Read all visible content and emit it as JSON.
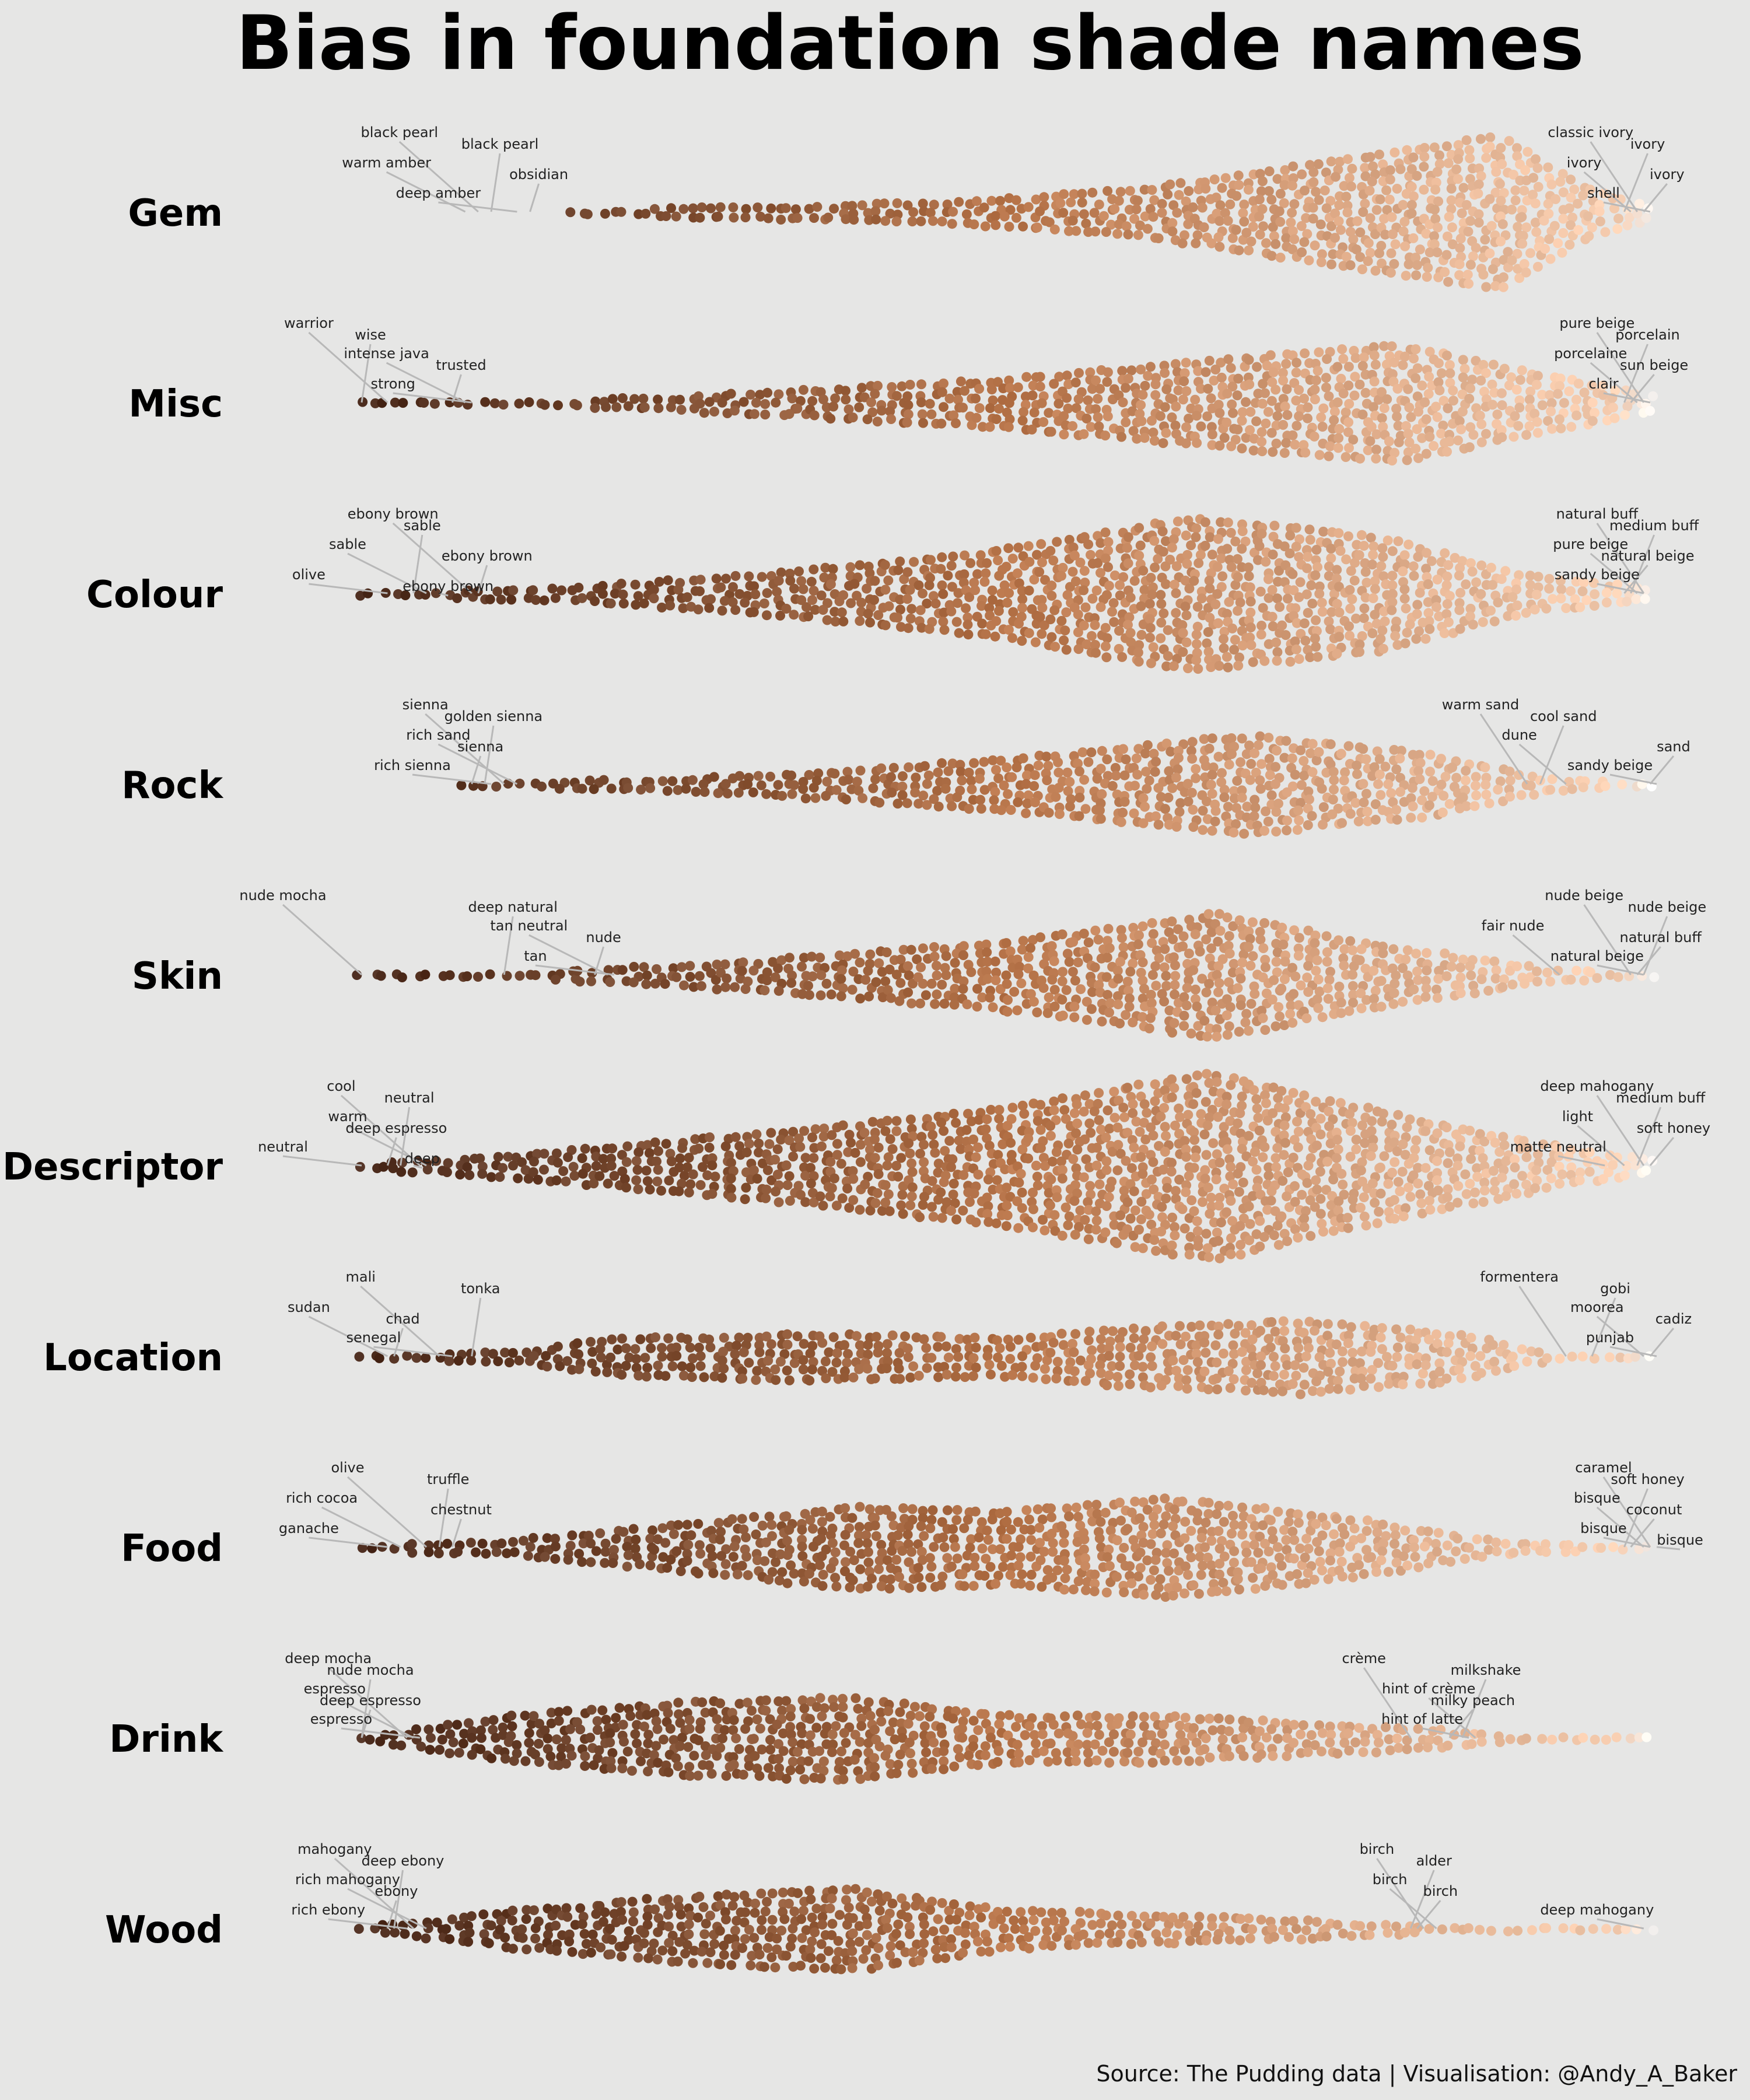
{
  "chart_data": {
    "type": "scatter",
    "subtype": "beeswarm",
    "title": "Bias in foundation shade names",
    "source": "Source: The Pudding data | Visualisation: @Andy_A_Baker",
    "x_meaning": "shade lightness (dark to light)",
    "xlim": [
      0,
      1
    ],
    "grid": false,
    "legend": "none",
    "color_dark": "#4a2a1c",
    "color_mid": "#b8754a",
    "color_light": "#f6cdb0",
    "color_lightest": "#ffffff",
    "categories": [
      {
        "name": "Gem",
        "shape": [
          [
            0.16,
            1.0
          ],
          [
            0.28,
            2.0
          ],
          [
            0.45,
            3.0
          ],
          [
            0.6,
            6.0
          ],
          [
            0.74,
            12.0
          ],
          [
            0.88,
            18.0
          ],
          [
            0.94,
            7.0
          ],
          [
            1.0,
            1.5
          ]
        ],
        "annotations": [
          {
            "text": "black pearl",
            "x": 0.09
          },
          {
            "text": "black pearl",
            "x": 0.1
          },
          {
            "text": "warm amber",
            "x": 0.08
          },
          {
            "text": "obsidian",
            "x": 0.13
          },
          {
            "text": "deep amber",
            "x": 0.12
          },
          {
            "text": "classic ivory",
            "x": 0.985
          },
          {
            "text": "ivory",
            "x": 0.975
          },
          {
            "text": "ivory",
            "x": 0.98
          },
          {
            "text": "ivory",
            "x": 0.99
          },
          {
            "text": "shell",
            "x": 0.995
          }
        ]
      },
      {
        "name": "Misc",
        "shape": [
          [
            0.0,
            1.0
          ],
          [
            0.15,
            1.2
          ],
          [
            0.3,
            3.0
          ],
          [
            0.48,
            6.0
          ],
          [
            0.64,
            10.0
          ],
          [
            0.8,
            14.0
          ],
          [
            0.9,
            8.0
          ],
          [
            1.0,
            2.5
          ]
        ],
        "annotations": [
          {
            "text": "warrior",
            "x": 0.02
          },
          {
            "text": "wise",
            "x": 0.0
          },
          {
            "text": "intense java",
            "x": 0.08
          },
          {
            "text": "trusted",
            "x": 0.07
          },
          {
            "text": "strong",
            "x": 0.085
          },
          {
            "text": "pure beige",
            "x": 0.99
          },
          {
            "text": "porcelain",
            "x": 0.975
          },
          {
            "text": "porcelaine",
            "x": 0.985
          },
          {
            "text": "sun beige",
            "x": 0.98
          },
          {
            "text": "clair",
            "x": 0.995
          }
        ]
      },
      {
        "name": "Colour",
        "shape": [
          [
            0.0,
            1.0
          ],
          [
            0.15,
            2.0
          ],
          [
            0.3,
            5.0
          ],
          [
            0.48,
            10.0
          ],
          [
            0.64,
            18.0
          ],
          [
            0.78,
            14.0
          ],
          [
            0.9,
            5.0
          ],
          [
            1.0,
            2.0
          ]
        ],
        "annotations": [
          {
            "text": "ebony brown",
            "x": 0.085
          },
          {
            "text": "sable",
            "x": 0.04
          },
          {
            "text": "sable",
            "x": 0.05
          },
          {
            "text": "ebony brown",
            "x": 0.09
          },
          {
            "text": "olive",
            "x": 0.02
          },
          {
            "text": "ebony brown",
            "x": 0.06
          },
          {
            "text": "natural buff",
            "x": 0.99
          },
          {
            "text": "medium buff",
            "x": 0.98
          },
          {
            "text": "pure beige",
            "x": 0.985
          },
          {
            "text": "natural beige",
            "x": 0.975
          },
          {
            "text": "sandy beige",
            "x": 0.99
          }
        ]
      },
      {
        "name": "Rock",
        "shape": [
          [
            0.08,
            1.0
          ],
          [
            0.22,
            2.0
          ],
          [
            0.38,
            4.0
          ],
          [
            0.55,
            8.0
          ],
          [
            0.68,
            12.0
          ],
          [
            0.82,
            8.0
          ],
          [
            0.92,
            2.0
          ],
          [
            1.0,
            1.0
          ]
        ],
        "annotations": [
          {
            "text": "sienna",
            "x": 0.11
          },
          {
            "text": "golden sienna",
            "x": 0.095
          },
          {
            "text": "rich sand",
            "x": 0.12
          },
          {
            "text": "sienna",
            "x": 0.085
          },
          {
            "text": "rich sienna",
            "x": 0.1
          },
          {
            "text": "warm sand",
            "x": 0.9
          },
          {
            "text": "cool sand",
            "x": 0.91
          },
          {
            "text": "dune",
            "x": 0.93
          },
          {
            "text": "sand",
            "x": 0.995
          },
          {
            "text": "sandy beige",
            "x": 1.0
          }
        ]
      },
      {
        "name": "Skin",
        "shape": [
          [
            0.0,
            1.0
          ],
          [
            0.15,
            1.5
          ],
          [
            0.3,
            4.0
          ],
          [
            0.48,
            8.0
          ],
          [
            0.6,
            12.0
          ],
          [
            0.66,
            15.0
          ],
          [
            0.8,
            7.0
          ],
          [
            0.92,
            2.0
          ],
          [
            1.0,
            1.0
          ]
        ],
        "annotations": [
          {
            "text": "nude mocha",
            "x": 0.0
          },
          {
            "text": "deep natural",
            "x": 0.11
          },
          {
            "text": "tan neutral",
            "x": 0.19
          },
          {
            "text": "nude",
            "x": 0.18
          },
          {
            "text": "tan",
            "x": 0.195
          },
          {
            "text": "nude beige",
            "x": 0.98
          },
          {
            "text": "nude beige",
            "x": 0.99
          },
          {
            "text": "fair nude",
            "x": 0.925
          },
          {
            "text": "natural buff",
            "x": 0.985
          },
          {
            "text": "natural beige",
            "x": 0.99
          }
        ]
      },
      {
        "name": "Descriptor",
        "shape": [
          [
            0.0,
            1.0
          ],
          [
            0.1,
            3.0
          ],
          [
            0.3,
            8.0
          ],
          [
            0.5,
            14.0
          ],
          [
            0.66,
            22.0
          ],
          [
            0.74,
            16.0
          ],
          [
            0.84,
            10.0
          ],
          [
            0.95,
            4.0
          ],
          [
            1.0,
            2.0
          ]
        ],
        "annotations": [
          {
            "text": "cool",
            "x": 0.045
          },
          {
            "text": "neutral",
            "x": 0.03
          },
          {
            "text": "warm",
            "x": 0.05
          },
          {
            "text": "deep espresso",
            "x": 0.02
          },
          {
            "text": "neutral",
            "x": 0.0
          },
          {
            "text": "deep",
            "x": 0.04
          },
          {
            "text": "deep mahogany",
            "x": 0.99
          },
          {
            "text": "medium buff",
            "x": 0.985
          },
          {
            "text": "light",
            "x": 0.975
          },
          {
            "text": "soft honey",
            "x": 0.995
          },
          {
            "text": "matte neutral",
            "x": 0.96
          }
        ]
      },
      {
        "name": "Location",
        "shape": [
          [
            0.0,
            1.0
          ],
          [
            0.12,
            2.0
          ],
          [
            0.2,
            5.0
          ],
          [
            0.35,
            6.0
          ],
          [
            0.5,
            5.0
          ],
          [
            0.58,
            7.0
          ],
          [
            0.72,
            9.0
          ],
          [
            0.85,
            6.0
          ],
          [
            0.92,
            1.0
          ],
          [
            1.0,
            1.0
          ]
        ],
        "annotations": [
          {
            "text": "mali",
            "x": 0.06
          },
          {
            "text": "tonka",
            "x": 0.085
          },
          {
            "text": "sudan",
            "x": 0.02
          },
          {
            "text": "chad",
            "x": 0.025
          },
          {
            "text": "senegal",
            "x": 0.07
          },
          {
            "text": "formentera",
            "x": 0.93
          },
          {
            "text": "gobi",
            "x": 0.95
          },
          {
            "text": "moorea",
            "x": 0.99
          },
          {
            "text": "cadiz",
            "x": 0.995
          },
          {
            "text": "punjab",
            "x": 1.0
          }
        ]
      },
      {
        "name": "Food",
        "shape": [
          [
            0.0,
            1.0
          ],
          [
            0.12,
            2.5
          ],
          [
            0.25,
            6.0
          ],
          [
            0.38,
            10.0
          ],
          [
            0.5,
            9.0
          ],
          [
            0.62,
            12.0
          ],
          [
            0.75,
            8.0
          ],
          [
            0.88,
            2.0
          ],
          [
            1.0,
            1.0
          ]
        ],
        "annotations": [
          {
            "text": "olive",
            "x": 0.05
          },
          {
            "text": "truffle",
            "x": 0.06
          },
          {
            "text": "rich cocoa",
            "x": 0.03
          },
          {
            "text": "chestnut",
            "x": 0.07
          },
          {
            "text": "ganache",
            "x": 0.02
          },
          {
            "text": "caramel",
            "x": 0.995
          },
          {
            "text": "soft honey",
            "x": 0.975
          },
          {
            "text": "bisque",
            "x": 0.99
          },
          {
            "text": "coconut",
            "x": 0.98
          },
          {
            "text": "bisque",
            "x": 0.995
          },
          {
            "text": "bisque",
            "x": 1.0
          }
        ]
      },
      {
        "name": "Drink",
        "shape": [
          [
            0.0,
            1.0
          ],
          [
            0.12,
            6.0
          ],
          [
            0.25,
            9.0
          ],
          [
            0.38,
            10.0
          ],
          [
            0.5,
            6.0
          ],
          [
            0.62,
            6.0
          ],
          [
            0.75,
            4.0
          ],
          [
            0.82,
            3.0
          ],
          [
            0.9,
            1.0
          ],
          [
            1.0,
            1.0
          ]
        ],
        "annotations": [
          {
            "text": "deep mocha",
            "x": 0.035
          },
          {
            "text": "nude mocha",
            "x": 0.0
          },
          {
            "text": "espresso",
            "x": 0.04
          },
          {
            "text": "deep espresso",
            "x": 0.0
          },
          {
            "text": "espresso",
            "x": 0.045
          },
          {
            "text": "crème",
            "x": 0.81
          },
          {
            "text": "milkshake",
            "x": 0.85
          },
          {
            "text": "hint of crème",
            "x": 0.86
          },
          {
            "text": "milky peach",
            "x": 0.84
          },
          {
            "text": "hint of latte",
            "x": 0.855
          }
        ]
      },
      {
        "name": "Wood",
        "shape": [
          [
            0.0,
            1.0
          ],
          [
            0.12,
            5.0
          ],
          [
            0.24,
            8.0
          ],
          [
            0.38,
            10.0
          ],
          [
            0.5,
            5.0
          ],
          [
            0.62,
            4.0
          ],
          [
            0.75,
            2.5
          ],
          [
            0.82,
            1.5
          ],
          [
            1.0,
            1.0
          ]
        ],
        "annotations": [
          {
            "text": "mahogany",
            "x": 0.04
          },
          {
            "text": "deep ebony",
            "x": 0.025
          },
          {
            "text": "rich mahogany",
            "x": 0.05
          },
          {
            "text": "ebony",
            "x": 0.02
          },
          {
            "text": "rich ebony",
            "x": 0.035
          },
          {
            "text": "birch",
            "x": 0.82
          },
          {
            "text": "alder",
            "x": 0.81
          },
          {
            "text": "birch",
            "x": 0.83
          },
          {
            "text": "birch",
            "x": 0.815
          },
          {
            "text": "deep mahogany",
            "x": 0.99
          }
        ]
      }
    ]
  }
}
